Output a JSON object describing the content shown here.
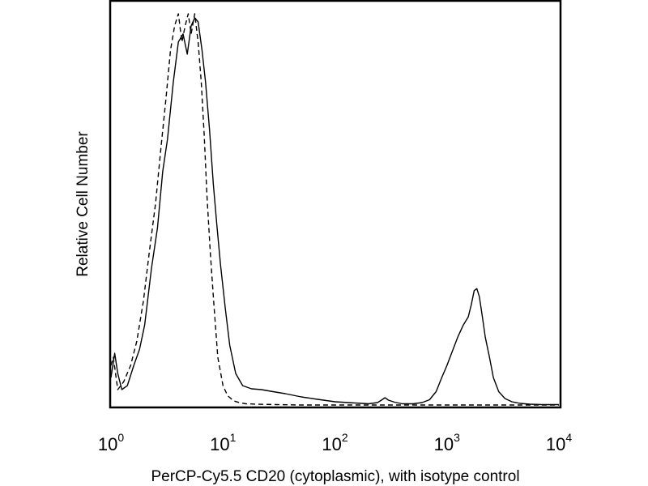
{
  "chart_data": {
    "type": "line",
    "title": "",
    "xlabel": "PerCP-Cy5.5 CD20 (cytoplasmic), with isotype control",
    "ylabel": "Relative Cell Number",
    "xscale": "log",
    "xlim": [
      1,
      10000
    ],
    "ylim": [
      0,
      100
    ],
    "grid": false,
    "ticks": [
      {
        "value": 1,
        "base": "10",
        "exp": "0"
      },
      {
        "value": 10,
        "base": "10",
        "exp": "1"
      },
      {
        "value": 100,
        "base": "10",
        "exp": "2"
      },
      {
        "value": 1000,
        "base": "10",
        "exp": "3"
      },
      {
        "value": 10000,
        "base": "10",
        "exp": "4"
      }
    ],
    "series": [
      {
        "name": "CD20 (cytoplasmic)",
        "style": "solid",
        "x": [
          1.0,
          1.08,
          1.15,
          1.25,
          1.4,
          1.6,
          1.8,
          2.0,
          2.3,
          2.6,
          2.9,
          3.2,
          3.6,
          4.0,
          4.4,
          4.8,
          5.2,
          5.6,
          6.0,
          6.5,
          7.0,
          7.6,
          8.2,
          8.8,
          9.5,
          10.5,
          11.5,
          13,
          15,
          18,
          22,
          28,
          36,
          50,
          70,
          100,
          150,
          200,
          240,
          260,
          280,
          300,
          340,
          400,
          500,
          600,
          700,
          800,
          900,
          1000,
          1100,
          1250,
          1400,
          1550,
          1650,
          1750,
          1850,
          1950,
          2050,
          2200,
          2400,
          2600,
          2900,
          3300,
          3800,
          4500,
          5500,
          7000,
          9000,
          10000
        ],
        "y": [
          7,
          13,
          8,
          4,
          5,
          10,
          14,
          20,
          34,
          44,
          58,
          66,
          80,
          90,
          92,
          87,
          94,
          96,
          95,
          88,
          80,
          68,
          55,
          45,
          35,
          24,
          15,
          8,
          5,
          4.2,
          4.0,
          3.5,
          3.0,
          2.2,
          1.6,
          1.0,
          0.7,
          0.5,
          0.8,
          1.4,
          2.0,
          1.4,
          0.9,
          0.5,
          0.5,
          0.8,
          1.5,
          3.5,
          7,
          10,
          13,
          17,
          20,
          22,
          25,
          28.5,
          29,
          27,
          23,
          17,
          12,
          7,
          3.5,
          1.8,
          1.0,
          0.6,
          0.4,
          0.3,
          0.3,
          0.3
        ]
      },
      {
        "name": "Isotype control",
        "style": "dashed",
        "x": [
          1.0,
          1.05,
          1.15,
          1.3,
          1.5,
          1.7,
          1.95,
          2.2,
          2.5,
          2.8,
          3.1,
          3.4,
          3.7,
          4.0,
          4.3,
          4.6,
          4.9,
          5.2,
          5.6,
          6.0,
          6.4,
          6.8,
          7.2,
          7.7,
          8.3,
          9.0,
          10.0,
          11.0,
          12.5,
          14,
          16,
          20,
          30,
          50,
          80,
          120,
          200,
          400,
          1000,
          3000,
          10000
        ],
        "y": [
          10,
          12,
          4,
          6,
          10,
          16,
          26,
          38,
          50,
          64,
          76,
          88,
          94,
          97,
          90,
          94,
          97,
          92,
          97,
          90,
          80,
          67,
          52,
          38,
          25,
          12,
          5,
          2.5,
          1.2,
          0.8,
          0.5,
          0.4,
          0.3,
          0.2,
          0.2,
          0.2,
          0.2,
          0.2,
          0.2,
          0.2,
          0.2
        ]
      }
    ]
  }
}
